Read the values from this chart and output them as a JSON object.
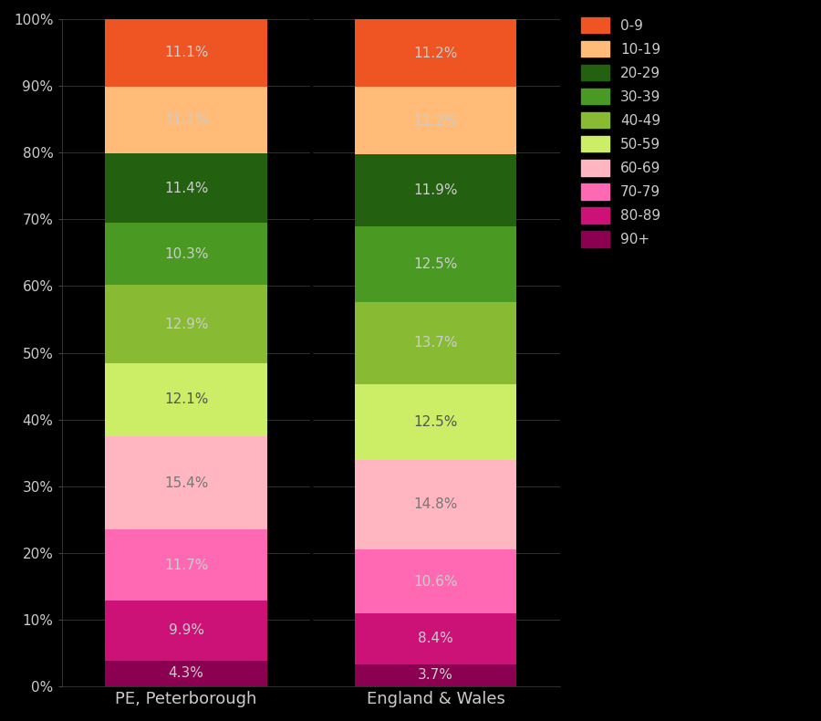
{
  "categories": [
    "PE, Peterborough",
    "England & Wales"
  ],
  "age_groups_bottom_to_top": [
    "90+",
    "80-89",
    "70-79",
    "60-69",
    "50-59",
    "40-49",
    "30-39",
    "20-29",
    "10-19",
    "0-9"
  ],
  "colors_bottom_to_top": [
    "#8B0050",
    "#CC1177",
    "#FF69B4",
    "#FFB6C1",
    "#CCEE66",
    "#88BB33",
    "#4A9922",
    "#236010",
    "#FFBB77",
    "#EE5522"
  ],
  "peterborough_bottom_to_top": [
    4.3,
    9.9,
    11.7,
    15.4,
    12.1,
    12.9,
    10.3,
    11.4,
    11.1,
    11.1
  ],
  "england_wales_bottom_to_top": [
    3.7,
    8.4,
    10.6,
    14.8,
    12.5,
    13.7,
    12.5,
    11.9,
    11.2,
    11.2
  ],
  "pete_scale": 99.2,
  "ew_scale": 100.3,
  "labels": {
    "peterborough": [
      "4.3%",
      "9.9%",
      "11.7%",
      "15.4%",
      "12.1%",
      "12.9%",
      "10.3%",
      "11.4%",
      "11.1%",
      "11.1%"
    ],
    "england_wales": [
      "3.7%",
      "8.4%",
      "10.6%",
      "14.8%",
      "12.5%",
      "13.7%",
      "12.5%",
      "11.9%",
      "11.2%",
      "11.2%"
    ]
  },
  "legend_labels": [
    "0-9",
    "10-19",
    "20-29",
    "30-39",
    "40-49",
    "50-59",
    "60-69",
    "70-79",
    "80-89",
    "90+"
  ],
  "legend_colors": [
    "#EE5522",
    "#FFBB77",
    "#236010",
    "#4A9922",
    "#88BB33",
    "#CCEE66",
    "#FFB6C1",
    "#FF69B4",
    "#CC1177",
    "#8B0050"
  ],
  "background_color": "#000000",
  "text_color": "#CCCCCC",
  "bar_width": 0.65,
  "figsize": [
    9.0,
    7.9
  ],
  "dpi": 100,
  "ylim": [
    0,
    100
  ],
  "yticks": [
    0,
    10,
    20,
    30,
    40,
    50,
    60,
    70,
    80,
    90,
    100
  ],
  "xlabel_fontsize": 13,
  "ylabel_fontsize": 11,
  "label_fontsize": 11,
  "legend_fontsize": 11
}
